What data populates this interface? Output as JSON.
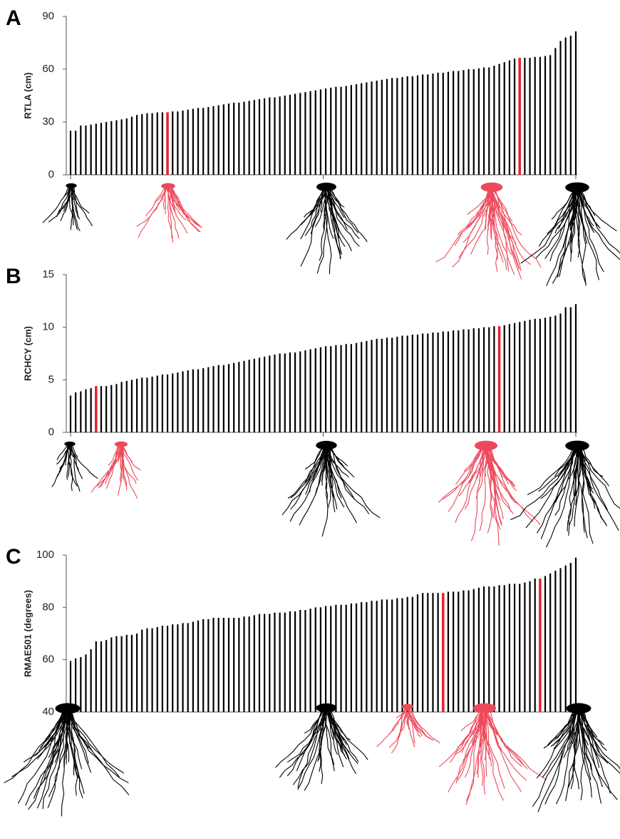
{
  "chart_data": [
    {
      "type": "bar",
      "panel_label": "A",
      "y_label": "RTLA (cm)",
      "color": "#000000",
      "highlight_color": "#e8202a",
      "highlight_indices": [
        19,
        88
      ],
      "ylim": [
        0,
        90
      ],
      "yticks": [
        0,
        30,
        60,
        90
      ],
      "values": [
        25,
        25,
        28,
        28,
        28.5,
        29,
        29.5,
        30,
        30.5,
        31,
        31.5,
        32,
        33,
        34,
        34.5,
        35,
        35,
        35.5,
        35.5,
        35.5,
        36,
        36,
        36.5,
        37,
        37.5,
        38,
        38,
        38.5,
        39,
        39.5,
        40,
        40.5,
        41,
        41,
        41.5,
        42,
        42.5,
        43,
        43.5,
        44,
        44,
        44.5,
        45,
        45.5,
        46,
        46.5,
        47,
        47.5,
        48,
        48.5,
        49,
        49.5,
        50,
        50,
        50.5,
        51,
        51.5,
        52,
        52.5,
        53,
        53.5,
        54,
        54.5,
        55,
        55,
        55.5,
        56,
        56,
        56.5,
        57,
        57,
        57.5,
        58,
        58,
        58.5,
        59,
        59,
        59.5,
        60,
        60,
        60.5,
        61,
        61,
        62,
        63,
        64,
        65,
        66,
        66.5,
        66.5,
        66.5,
        67,
        67,
        67.5,
        68,
        72,
        76,
        78,
        79,
        81.5
      ]
    },
    {
      "type": "bar",
      "panel_label": "B",
      "y_label": "RCHCY (cm)",
      "color": "#000000",
      "highlight_color": "#e8202a",
      "highlight_indices": [
        5,
        84
      ],
      "ylim": [
        0,
        15
      ],
      "yticks": [
        0,
        5,
        10,
        15
      ],
      "values": [
        3.5,
        3.8,
        3.9,
        4.1,
        4.2,
        4.4,
        4.4,
        4.4,
        4.5,
        4.6,
        4.8,
        4.9,
        5.0,
        5.1,
        5.2,
        5.2,
        5.3,
        5.4,
        5.5,
        5.5,
        5.6,
        5.7,
        5.8,
        5.9,
        6.0,
        6.0,
        6.1,
        6.2,
        6.3,
        6.4,
        6.4,
        6.5,
        6.6,
        6.7,
        6.8,
        6.9,
        7.0,
        7.1,
        7.2,
        7.3,
        7.4,
        7.5,
        7.5,
        7.6,
        7.6,
        7.7,
        7.8,
        7.9,
        8.0,
        8.1,
        8.2,
        8.2,
        8.3,
        8.3,
        8.4,
        8.4,
        8.5,
        8.6,
        8.7,
        8.8,
        8.9,
        8.9,
        9.0,
        9.0,
        9.1,
        9.2,
        9.2,
        9.3,
        9.3,
        9.4,
        9.4,
        9.5,
        9.5,
        9.6,
        9.6,
        9.7,
        9.7,
        9.8,
        9.8,
        9.9,
        9.9,
        10.0,
        10.0,
        10.1,
        10.1,
        10.2,
        10.3,
        10.4,
        10.5,
        10.6,
        10.7,
        10.8,
        10.8,
        10.9,
        11.0,
        11.1,
        11.3,
        11.9,
        11.9,
        12.2
      ]
    },
    {
      "type": "bar",
      "panel_label": "C",
      "y_label": "RMAE501 (degrees)",
      "color": "#000000",
      "highlight_color": "#e8202a",
      "highlight_indices": [
        73,
        92
      ],
      "ylim": [
        40,
        100
      ],
      "yticks": [
        40,
        60,
        80,
        100
      ],
      "values": [
        59.5,
        60.5,
        61,
        62,
        64,
        67,
        67,
        67.5,
        68.5,
        69,
        69,
        69.5,
        69.5,
        70,
        71.5,
        72,
        72,
        72.5,
        73,
        73,
        73.5,
        73.5,
        74,
        74,
        74.5,
        75,
        75.5,
        75.5,
        76,
        76,
        76,
        76,
        76,
        76,
        76.5,
        76.5,
        77,
        77.5,
        77.5,
        77.5,
        78,
        78,
        78,
        78.5,
        78.5,
        79,
        79,
        79.5,
        80,
        80,
        80.5,
        80.5,
        81,
        81,
        81,
        81.5,
        81.5,
        82,
        82,
        82.5,
        82.5,
        83,
        83,
        83,
        83.5,
        83.5,
        84,
        84,
        85,
        85.5,
        85.5,
        85.5,
        85.5,
        85.5,
        86,
        86,
        86,
        86.5,
        86.5,
        87,
        87.5,
        88,
        88,
        88,
        88.5,
        88.5,
        89,
        89,
        89,
        89.5,
        90,
        91,
        91,
        92,
        93,
        94,
        95,
        96,
        97,
        99
      ]
    }
  ]
}
